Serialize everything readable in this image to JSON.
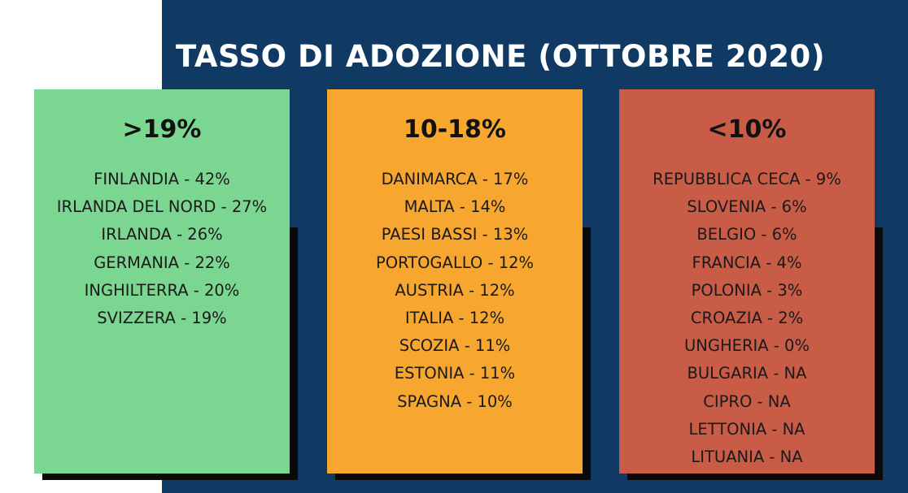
{
  "title": "TASSO DI ADOZIONE (OTTOBRE 2020)",
  "colors": {
    "navy_background": "#103a63",
    "green_card": "#7bd692",
    "orange_card": "#f7a72f",
    "red_card": "#c95c47",
    "shadow": "#0a0a0a"
  },
  "columns": [
    {
      "heading": ">19%",
      "items": [
        "FINLANDIA - 42%",
        "IRLANDA DEL NORD - 27%",
        "IRLANDA - 26%",
        "GERMANIA - 22%",
        "INGHILTERRA - 20%",
        "SVIZZERA - 19%"
      ]
    },
    {
      "heading": "10-18%",
      "items": [
        "DANIMARCA - 17%",
        "MALTA - 14%",
        "PAESI BASSI - 13%",
        "PORTOGALLO - 12%",
        "AUSTRIA - 12%",
        "ITALIA - 12%",
        "SCOZIA - 11%",
        "ESTONIA - 11%",
        "SPAGNA - 10%"
      ]
    },
    {
      "heading": "<10%",
      "items": [
        "REPUBBLICA CECA - 9%",
        "SLOVENIA - 6%",
        "BELGIO - 6%",
        "FRANCIA - 4%",
        "POLONIA - 3%",
        "CROAZIA - 2%",
        "UNGHERIA - 0%",
        "BULGARIA - NA",
        "CIPRO - NA",
        "LETTONIA - NA",
        "LITUANIA - NA"
      ]
    }
  ]
}
